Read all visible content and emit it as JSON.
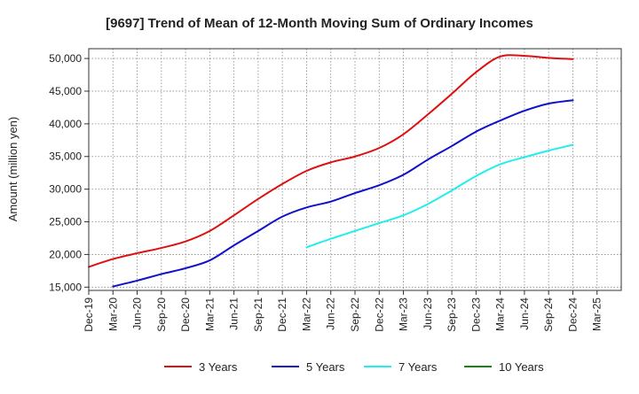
{
  "chart_data": {
    "type": "line",
    "title": "[9697]  Trend of Mean of 12-Month Moving Sum of Ordinary Incomes",
    "xlabel": "",
    "ylabel": "Amount (million yen)",
    "grid": true,
    "legend_position": "bottom",
    "ylim": [
      14500,
      51500
    ],
    "y_ticks": [
      15000,
      20000,
      25000,
      30000,
      35000,
      40000,
      45000,
      50000
    ],
    "y_tick_labels": [
      "15,000",
      "20,000",
      "25,000",
      "30,000",
      "35,000",
      "40,000",
      "45,000",
      "50,000"
    ],
    "categories": [
      "Dec-19",
      "Mar-20",
      "Jun-20",
      "Sep-20",
      "Dec-20",
      "Mar-21",
      "Jun-21",
      "Sep-21",
      "Dec-21",
      "Mar-22",
      "Jun-22",
      "Sep-22",
      "Dec-22",
      "Mar-23",
      "Jun-23",
      "Sep-23",
      "Dec-23",
      "Mar-24",
      "Jun-24",
      "Sep-24",
      "Dec-24",
      "Mar-25"
    ],
    "series": [
      {
        "name": "3 Years",
        "color": "#dd1111",
        "values": [
          18100,
          19300,
          20200,
          21000,
          22000,
          23600,
          26000,
          28500,
          30800,
          32800,
          34100,
          35000,
          36300,
          38400,
          41400,
          44600,
          47900,
          50300,
          50400,
          50100,
          49900,
          null
        ]
      },
      {
        "name": "5 Years",
        "color": "#1111cc",
        "values": [
          null,
          15100,
          16000,
          17000,
          17900,
          19100,
          21400,
          23600,
          25800,
          27200,
          28100,
          29400,
          30600,
          32200,
          34500,
          36600,
          38800,
          40500,
          42000,
          43100,
          43600,
          null
        ]
      },
      {
        "name": "7 Years",
        "color": "#22eeee",
        "values": [
          null,
          null,
          null,
          null,
          null,
          null,
          null,
          null,
          null,
          21100,
          22400,
          23600,
          24800,
          26000,
          27700,
          29800,
          32000,
          33800,
          34900,
          35900,
          36800,
          null
        ]
      },
      {
        "name": "10 Years",
        "color": "#118811",
        "values": [
          null,
          null,
          null,
          null,
          null,
          null,
          null,
          null,
          null,
          null,
          null,
          null,
          null,
          null,
          null,
          null,
          null,
          null,
          null,
          null,
          null,
          null
        ]
      }
    ]
  }
}
